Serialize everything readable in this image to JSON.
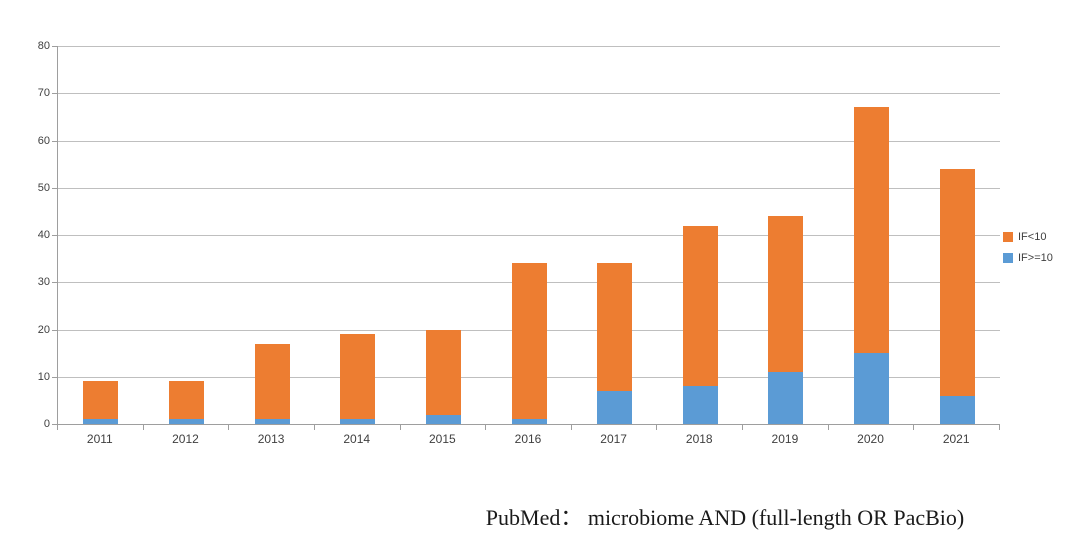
{
  "caption": {
    "text": "PubMed： microbiome AND (full-length OR PacBio)"
  },
  "colors": {
    "if_lt_10": "#ED7D31",
    "if_gte_10": "#5B9BD5",
    "gridline": "#BFBFBF",
    "axis": "#9E9E9E",
    "tick_label": "#3F3F3F"
  },
  "chart_data": {
    "type": "bar",
    "stacked": true,
    "title": "",
    "xlabel": "",
    "ylabel": "",
    "categories": [
      "2011",
      "2012",
      "2013",
      "2014",
      "2015",
      "2016",
      "2017",
      "2018",
      "2019",
      "2020",
      "2021"
    ],
    "series": [
      {
        "name": "IF>=10",
        "color": "#5B9BD5",
        "stack_position": "bottom",
        "values": [
          1,
          1,
          1,
          1,
          2,
          1,
          7,
          8,
          11,
          15,
          6
        ]
      },
      {
        "name": "IF<10",
        "color": "#ED7D31",
        "stack_position": "top",
        "values": [
          8,
          8,
          16,
          18,
          18,
          33,
          27,
          34,
          33,
          52,
          48
        ]
      }
    ],
    "totals": [
      9,
      9,
      17,
      19,
      20,
      34,
      34,
      42,
      44,
      67,
      54
    ],
    "ylim": [
      0,
      80
    ],
    "yticks": [
      0,
      10,
      20,
      30,
      40,
      50,
      60,
      70,
      80
    ],
    "grid": true,
    "legend": {
      "position": "right",
      "entries": [
        {
          "label": "IF<10",
          "color": "#ED7D31"
        },
        {
          "label": "IF>=10",
          "color": "#5B9BD5"
        }
      ]
    }
  }
}
